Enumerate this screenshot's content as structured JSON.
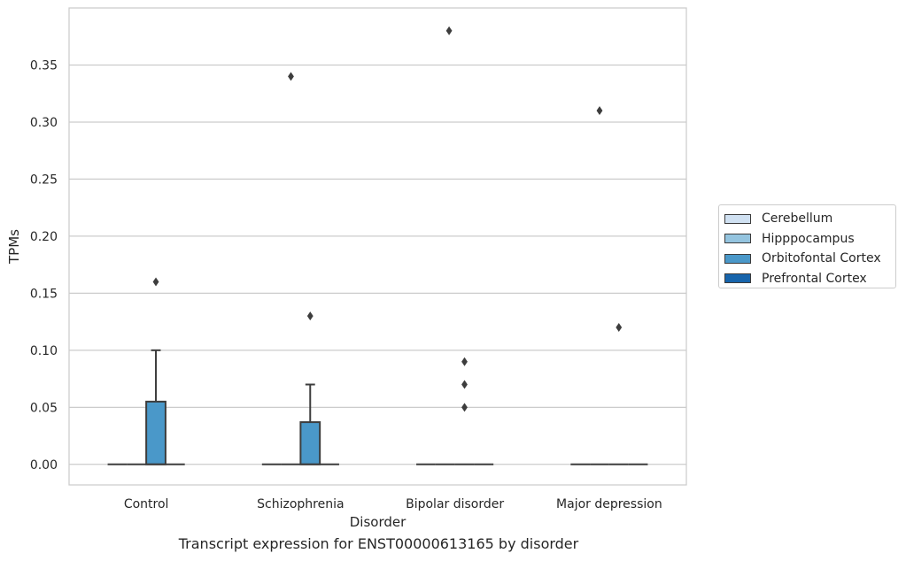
{
  "chart_data": {
    "type": "box",
    "xlabel": "Disorder",
    "ylabel": "TPMs",
    "caption": "Transcript expression for ENST00000613165 by disorder",
    "categories": [
      "Control",
      "Schizophrenia",
      "Bipolar disorder",
      "Major depression"
    ],
    "ylim": [
      -0.018,
      0.4
    ],
    "yticks": [
      "0.00",
      "0.05",
      "0.10",
      "0.15",
      "0.20",
      "0.25",
      "0.30",
      "0.35"
    ],
    "grid": true,
    "legend_position": "right",
    "series": [
      {
        "name": "Cerebellum",
        "color": "#d0e1f2",
        "boxes": [
          {
            "q1": 0,
            "median": 0,
            "q3": 0,
            "whisker_low": 0,
            "whisker_high": 0,
            "outliers": []
          },
          {
            "q1": 0,
            "median": 0,
            "q3": 0,
            "whisker_low": 0,
            "whisker_high": 0,
            "outliers": []
          },
          {
            "q1": 0,
            "median": 0,
            "q3": 0,
            "whisker_low": 0,
            "whisker_high": 0,
            "outliers": []
          },
          {
            "q1": 0,
            "median": 0,
            "q3": 0,
            "whisker_low": 0,
            "whisker_high": 0,
            "outliers": []
          }
        ]
      },
      {
        "name": "Hipppocampus",
        "color": "#94c4df",
        "boxes": [
          {
            "q1": 0,
            "median": 0,
            "q3": 0,
            "whisker_low": 0,
            "whisker_high": 0,
            "outliers": []
          },
          {
            "q1": 0,
            "median": 0,
            "q3": 0,
            "whisker_low": 0,
            "whisker_high": 0,
            "outliers": [
              0.34
            ]
          },
          {
            "q1": 0,
            "median": 0,
            "q3": 0,
            "whisker_low": 0,
            "whisker_high": 0,
            "outliers": []
          },
          {
            "q1": 0,
            "median": 0,
            "q3": 0,
            "whisker_low": 0,
            "whisker_high": 0,
            "outliers": [
              0.31
            ]
          }
        ]
      },
      {
        "name": "Orbitofontal Cortex",
        "color": "#4a98c9",
        "boxes": [
          {
            "q1": 0,
            "median": 0,
            "q3": 0.055,
            "whisker_low": 0,
            "whisker_high": 0.1,
            "outliers": [
              0.16
            ]
          },
          {
            "q1": 0,
            "median": 0,
            "q3": 0.037,
            "whisker_low": 0,
            "whisker_high": 0.07,
            "outliers": [
              0.13
            ]
          },
          {
            "q1": 0,
            "median": 0,
            "q3": 0,
            "whisker_low": 0,
            "whisker_high": 0,
            "outliers": [
              0.05,
              0.07,
              0.09
            ]
          },
          {
            "q1": 0,
            "median": 0,
            "q3": 0,
            "whisker_low": 0,
            "whisker_high": 0,
            "outliers": [
              0.12
            ]
          }
        ]
      },
      {
        "name": "Prefrontal Cortex",
        "color": "#1764ab",
        "boxes": [
          {
            "q1": 0,
            "median": 0,
            "q3": 0,
            "whisker_low": 0,
            "whisker_high": 0,
            "outliers": []
          },
          {
            "q1": 0,
            "median": 0,
            "q3": 0,
            "whisker_low": 0,
            "whisker_high": 0,
            "outliers": []
          },
          {
            "q1": 0,
            "median": 0,
            "q3": 0,
            "whisker_low": 0,
            "whisker_high": 0,
            "outliers": []
          },
          {
            "q1": 0,
            "median": 0,
            "q3": 0,
            "whisker_low": 0,
            "whisker_high": 0,
            "outliers": []
          }
        ]
      }
    ],
    "extra_outliers": [
      {
        "category_index": 2,
        "series_index": 0,
        "value": 0.38
      }
    ]
  }
}
